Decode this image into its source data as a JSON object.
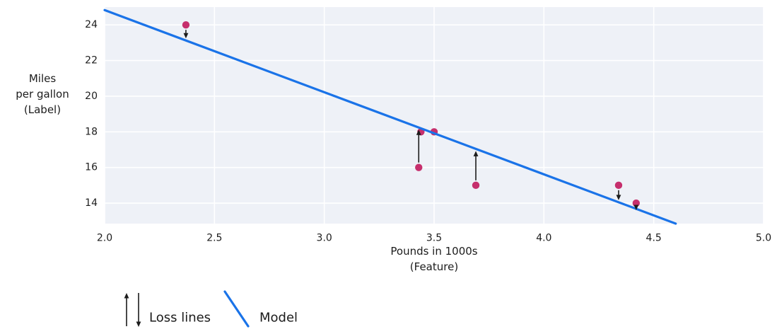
{
  "figure": {
    "plot_bg_color": "#eef1f7",
    "grid_color": "#ffffff",
    "model_color": "#1a73e8",
    "point_color": "#c62f6d",
    "arrow_color": "#1c1c1c",
    "text_color": "#1c1c1c"
  },
  "chart_data": {
    "type": "scatter",
    "title": "",
    "xlabel_lines": [
      "Pounds in 1000s",
      "(Feature)"
    ],
    "ylabel_lines": [
      "Miles",
      "per gallon",
      "(Label)"
    ],
    "xlim": [
      2.0,
      5.0
    ],
    "ylim": [
      12.85,
      25.0
    ],
    "xtick_values": [
      2.0,
      2.5,
      3.0,
      3.5,
      4.0,
      4.5,
      5.0
    ],
    "xtick_labels": [
      "2.0",
      "2.5",
      "3.0",
      "3.5",
      "4.0",
      "4.5",
      "5.0"
    ],
    "ytick_values": [
      14,
      16,
      18,
      20,
      22,
      24
    ],
    "ytick_labels": [
      "14",
      "16",
      "18",
      "20",
      "22",
      "24"
    ],
    "grid": true,
    "points": [
      {
        "x": 3.5,
        "y": 18
      },
      {
        "x": 3.69,
        "y": 15
      },
      {
        "x": 3.44,
        "y": 18
      },
      {
        "x": 3.43,
        "y": 16
      },
      {
        "x": 4.34,
        "y": 15
      },
      {
        "x": 4.42,
        "y": 14
      },
      {
        "x": 2.37,
        "y": 24
      }
    ],
    "model_line": {
      "x1": 2.0,
      "y1": 24.83,
      "x2": 4.6,
      "y2": 12.85
    },
    "loss_arrows": [
      {
        "x": 2.37,
        "y": 24,
        "dir": "down"
      },
      {
        "x": 3.43,
        "y": 16,
        "dir": "up"
      },
      {
        "x": 3.69,
        "y": 15,
        "dir": "up"
      },
      {
        "x": 4.34,
        "y": 15,
        "dir": "down"
      },
      {
        "x": 4.42,
        "y": 14,
        "dir": "down"
      }
    ],
    "legend": [
      {
        "symbol": "loss-arrows",
        "label": "Loss lines"
      },
      {
        "symbol": "model-line",
        "label": "Model"
      }
    ],
    "legend_position": "bottom-left"
  }
}
